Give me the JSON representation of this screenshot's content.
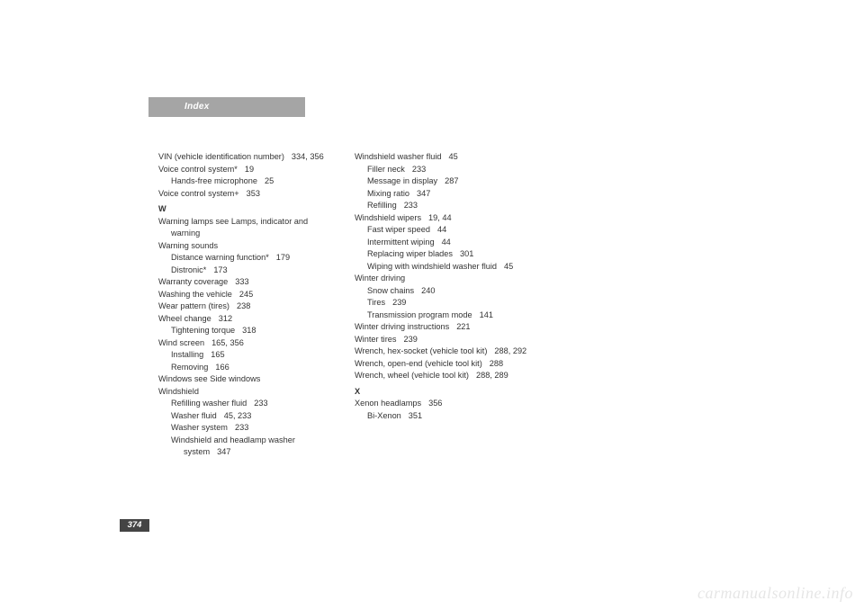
{
  "header": "Index",
  "page_number": "374",
  "watermark": "carmanualsonline.info",
  "col1": [
    {
      "t": "entry",
      "text": "VIN (vehicle identification number)",
      "pg": "334, 356",
      "wrap_indent": true
    },
    {
      "t": "entry",
      "text": "Voice control system*",
      "pg": "19"
    },
    {
      "t": "sub",
      "text": "Hands-free microphone",
      "pg": "25"
    },
    {
      "t": "entry",
      "text": "Voice control system+",
      "pg": "353"
    },
    {
      "t": "letter",
      "text": "W"
    },
    {
      "t": "entry",
      "text": "Warning lamps see Lamps, indicator and warning",
      "wrap_indent": true
    },
    {
      "t": "entry",
      "text": "Warning sounds"
    },
    {
      "t": "sub",
      "text": "Distance warning function*",
      "pg": "179"
    },
    {
      "t": "sub",
      "text": "Distronic*",
      "pg": "173"
    },
    {
      "t": "entry",
      "text": "Warranty coverage",
      "pg": "333"
    },
    {
      "t": "entry",
      "text": "Washing the vehicle",
      "pg": "245"
    },
    {
      "t": "entry",
      "text": "Wear pattern (tires)",
      "pg": "238"
    },
    {
      "t": "entry",
      "text": "Wheel change",
      "pg": "312"
    },
    {
      "t": "sub",
      "text": "Tightening torque",
      "pg": "318"
    },
    {
      "t": "entry",
      "text": "Wind screen",
      "pg": "165, 356"
    },
    {
      "t": "sub",
      "text": "Installing",
      "pg": "165"
    },
    {
      "t": "sub",
      "text": "Removing",
      "pg": "166"
    },
    {
      "t": "entry",
      "text": "Windows see Side windows"
    },
    {
      "t": "entry",
      "text": "Windshield"
    },
    {
      "t": "sub",
      "text": "Refilling washer fluid",
      "pg": "233"
    },
    {
      "t": "sub",
      "text": "Washer fluid",
      "pg": "45, 233"
    },
    {
      "t": "sub",
      "text": "Washer system",
      "pg": "233"
    },
    {
      "t": "sub",
      "text": "Windshield and headlamp washer system",
      "pg": "347",
      "wrap_indent": true
    }
  ],
  "col2": [
    {
      "t": "entry",
      "text": "Windshield washer fluid",
      "pg": "45"
    },
    {
      "t": "sub",
      "text": "Filler neck",
      "pg": "233"
    },
    {
      "t": "sub",
      "text": "Message in display",
      "pg": "287"
    },
    {
      "t": "sub",
      "text": "Mixing ratio",
      "pg": "347"
    },
    {
      "t": "sub",
      "text": "Refilling",
      "pg": "233"
    },
    {
      "t": "entry",
      "text": "Windshield wipers",
      "pg": "19, 44"
    },
    {
      "t": "sub",
      "text": "Fast wiper speed",
      "pg": "44"
    },
    {
      "t": "sub",
      "text": "Intermittent wiping",
      "pg": "44"
    },
    {
      "t": "sub",
      "text": "Replacing wiper blades",
      "pg": "301"
    },
    {
      "t": "sub",
      "text": "Wiping with windshield washer fluid",
      "pg": "45",
      "wrap_indent": true
    },
    {
      "t": "entry",
      "text": "Winter driving"
    },
    {
      "t": "sub",
      "text": "Snow chains",
      "pg": "240"
    },
    {
      "t": "sub",
      "text": "Tires",
      "pg": "239"
    },
    {
      "t": "sub",
      "text": "Transmission program mode",
      "pg": "141"
    },
    {
      "t": "entry",
      "text": "Winter driving instructions",
      "pg": "221"
    },
    {
      "t": "entry",
      "text": "Winter tires",
      "pg": "239"
    },
    {
      "t": "entry",
      "text": "Wrench, hex-socket (vehicle tool kit)",
      "pg": "288, 292",
      "wrap_indent": true
    },
    {
      "t": "entry",
      "text": "Wrench, open-end (vehicle tool kit)",
      "pg": "288"
    },
    {
      "t": "entry",
      "text": "Wrench, wheel (vehicle tool kit)",
      "pg": "288, 289"
    },
    {
      "t": "letter",
      "text": "X"
    },
    {
      "t": "entry",
      "text": "Xenon headlamps",
      "pg": "356"
    },
    {
      "t": "sub",
      "text": "Bi-Xenon",
      "pg": "351"
    }
  ]
}
